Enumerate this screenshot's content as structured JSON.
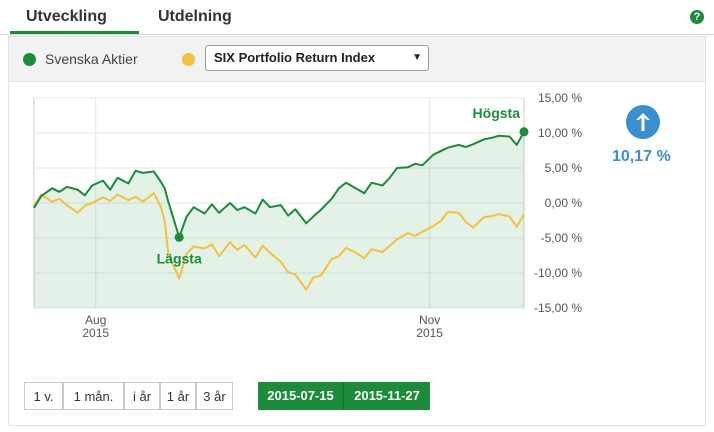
{
  "tabs": [
    {
      "label": "Utveckling"
    },
    {
      "label": "Utdelning"
    }
  ],
  "help_icon": "question-icon",
  "legend": {
    "primary_series": "Svenska Aktier",
    "primary_color": "#1a8c3a",
    "comparison_color": "#f2c23a",
    "comparison_select": "SIX Portfolio Return Index"
  },
  "return_indicator": {
    "icon": "arrow-up-icon",
    "value": "10,17 %",
    "color": "#3a8fd0"
  },
  "range_buttons": [
    "1 v.",
    "1 mån.",
    "i år",
    "1 år",
    "3 år"
  ],
  "date_range": {
    "from": "2015-07-15",
    "to": "2015-11-27"
  },
  "chart_data": {
    "type": "line",
    "x_ticks": [
      {
        "label": "Aug",
        "year": "2015",
        "date": "2015-08-01"
      },
      {
        "label": "Nov",
        "year": "2015",
        "date": "2015-11-01"
      }
    ],
    "y_ticks": [
      "15,00 %",
      "10,00 %",
      "5,00 %",
      "0,00 %",
      "-5,00 %",
      "-10,00 %",
      "-15,00 %"
    ],
    "ylim": [
      -15,
      15
    ],
    "xlim": [
      "2015-07-15",
      "2015-11-27"
    ],
    "grid": true,
    "annotations": {
      "high": {
        "label": "Högsta",
        "date": "2015-11-27",
        "value": 10.17
      },
      "low": {
        "label": "Lägsta",
        "date": "2015-08-24",
        "value": -4.9
      }
    },
    "series": [
      {
        "name": "Svenska Aktier",
        "color": "#1a8c3a",
        "area": true,
        "points": [
          [
            "2015-07-15",
            -0.7
          ],
          [
            "2015-07-17",
            1.0
          ],
          [
            "2015-07-20",
            2.1
          ],
          [
            "2015-07-22",
            1.6
          ],
          [
            "2015-07-24",
            2.3
          ],
          [
            "2015-07-27",
            1.9
          ],
          [
            "2015-07-29",
            1.1
          ],
          [
            "2015-07-31",
            2.5
          ],
          [
            "2015-08-03",
            3.2
          ],
          [
            "2015-08-05",
            1.9
          ],
          [
            "2015-08-07",
            3.6
          ],
          [
            "2015-08-10",
            2.8
          ],
          [
            "2015-08-12",
            4.6
          ],
          [
            "2015-08-14",
            4.3
          ],
          [
            "2015-08-17",
            4.5
          ],
          [
            "2015-08-19",
            3.0
          ],
          [
            "2015-08-20",
            2.1
          ],
          [
            "2015-08-21",
            0.2
          ],
          [
            "2015-08-24",
            -4.9
          ],
          [
            "2015-08-26",
            -2.0
          ],
          [
            "2015-08-28",
            -0.6
          ],
          [
            "2015-08-31",
            -1.5
          ],
          [
            "2015-09-02",
            -0.2
          ],
          [
            "2015-09-04",
            -1.4
          ],
          [
            "2015-09-07",
            0.0
          ],
          [
            "2015-09-09",
            -1.0
          ],
          [
            "2015-09-11",
            -0.6
          ],
          [
            "2015-09-14",
            -1.5
          ],
          [
            "2015-09-16",
            0.5
          ],
          [
            "2015-09-18",
            -0.6
          ],
          [
            "2015-09-21",
            -0.3
          ],
          [
            "2015-09-23",
            -1.8
          ],
          [
            "2015-09-25",
            -0.9
          ],
          [
            "2015-09-28",
            -2.9
          ],
          [
            "2015-09-30",
            -1.9
          ],
          [
            "2015-10-02",
            -1.0
          ],
          [
            "2015-10-05",
            0.6
          ],
          [
            "2015-10-07",
            2.1
          ],
          [
            "2015-10-09",
            2.9
          ],
          [
            "2015-10-12",
            2.0
          ],
          [
            "2015-10-14",
            1.4
          ],
          [
            "2015-10-16",
            2.9
          ],
          [
            "2015-10-19",
            2.5
          ],
          [
            "2015-10-21",
            3.6
          ],
          [
            "2015-10-23",
            5.0
          ],
          [
            "2015-10-26",
            5.1
          ],
          [
            "2015-10-28",
            5.6
          ],
          [
            "2015-10-30",
            5.4
          ],
          [
            "2015-11-02",
            6.9
          ],
          [
            "2015-11-04",
            7.4
          ],
          [
            "2015-11-06",
            7.9
          ],
          [
            "2015-11-09",
            8.3
          ],
          [
            "2015-11-11",
            8.0
          ],
          [
            "2015-11-13",
            8.4
          ],
          [
            "2015-11-16",
            9.1
          ],
          [
            "2015-11-18",
            9.3
          ],
          [
            "2015-11-20",
            9.6
          ],
          [
            "2015-11-23",
            9.5
          ],
          [
            "2015-11-25",
            8.3
          ],
          [
            "2015-11-27",
            10.17
          ]
        ]
      },
      {
        "name": "SIX Portfolio Return Index",
        "color": "#f2c23a",
        "area": false,
        "points": [
          [
            "2015-07-15",
            -0.4
          ],
          [
            "2015-07-17",
            1.2
          ],
          [
            "2015-07-20",
            0.2
          ],
          [
            "2015-07-22",
            0.6
          ],
          [
            "2015-07-24",
            -0.3
          ],
          [
            "2015-07-27",
            -1.4
          ],
          [
            "2015-07-29",
            -0.4
          ],
          [
            "2015-07-31",
            0.0
          ],
          [
            "2015-08-03",
            0.8
          ],
          [
            "2015-08-05",
            0.3
          ],
          [
            "2015-08-07",
            1.2
          ],
          [
            "2015-08-10",
            0.4
          ],
          [
            "2015-08-12",
            0.9
          ],
          [
            "2015-08-14",
            0.2
          ],
          [
            "2015-08-17",
            1.4
          ],
          [
            "2015-08-19",
            -0.6
          ],
          [
            "2015-08-20",
            -2.6
          ],
          [
            "2015-08-21",
            -7.2
          ],
          [
            "2015-08-24",
            -10.8
          ],
          [
            "2015-08-26",
            -7.3
          ],
          [
            "2015-08-28",
            -6.2
          ],
          [
            "2015-08-31",
            -6.5
          ],
          [
            "2015-09-02",
            -5.9
          ],
          [
            "2015-09-04",
            -7.6
          ],
          [
            "2015-09-07",
            -5.6
          ],
          [
            "2015-09-09",
            -6.7
          ],
          [
            "2015-09-11",
            -6.0
          ],
          [
            "2015-09-14",
            -7.8
          ],
          [
            "2015-09-16",
            -6.1
          ],
          [
            "2015-09-18",
            -7.1
          ],
          [
            "2015-09-21",
            -8.4
          ],
          [
            "2015-09-23",
            -9.9
          ],
          [
            "2015-09-25",
            -10.2
          ],
          [
            "2015-09-28",
            -12.4
          ],
          [
            "2015-09-30",
            -10.6
          ],
          [
            "2015-10-02",
            -10.4
          ],
          [
            "2015-10-05",
            -8.0
          ],
          [
            "2015-10-07",
            -7.6
          ],
          [
            "2015-10-09",
            -6.4
          ],
          [
            "2015-10-12",
            -7.2
          ],
          [
            "2015-10-14",
            -7.9
          ],
          [
            "2015-10-16",
            -6.6
          ],
          [
            "2015-10-19",
            -7.0
          ],
          [
            "2015-10-21",
            -6.1
          ],
          [
            "2015-10-23",
            -5.2
          ],
          [
            "2015-10-26",
            -4.3
          ],
          [
            "2015-10-28",
            -4.7
          ],
          [
            "2015-10-30",
            -4.1
          ],
          [
            "2015-11-02",
            -3.3
          ],
          [
            "2015-11-04",
            -2.6
          ],
          [
            "2015-11-06",
            -1.3
          ],
          [
            "2015-11-09",
            -1.4
          ],
          [
            "2015-11-11",
            -2.7
          ],
          [
            "2015-11-13",
            -3.5
          ],
          [
            "2015-11-16",
            -2.0
          ],
          [
            "2015-11-18",
            -1.9
          ],
          [
            "2015-11-20",
            -1.6
          ],
          [
            "2015-11-23",
            -1.9
          ],
          [
            "2015-11-25",
            -3.4
          ],
          [
            "2015-11-27",
            -1.6
          ]
        ]
      }
    ]
  }
}
